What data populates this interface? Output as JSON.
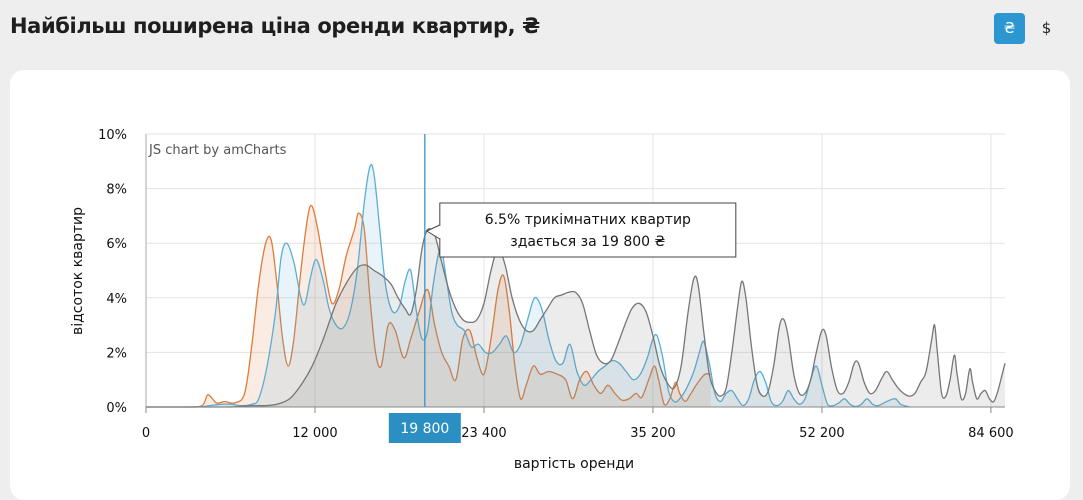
{
  "page": {
    "title": "Найбільш поширена ціна оренди квартир, ₴",
    "currency_uah": "₴",
    "currency_usd": "$"
  },
  "chart_data": {
    "type": "area",
    "credit": "JS chart by amCharts",
    "xlabel": "вартість оренди",
    "ylabel": "відсоток квартир",
    "x_ticks": [
      "0",
      "12 000",
      "23 400",
      "35 200",
      "52 200",
      "84 600"
    ],
    "x_tick_positions": [
      0,
      12,
      24,
      36,
      48,
      60
    ],
    "y_ticks": [
      "0%",
      "2%",
      "4%",
      "6%",
      "8%",
      "10%"
    ],
    "ylim": [
      0,
      10
    ],
    "xlim": [
      0,
      61
    ],
    "cursor": {
      "x": 19.8,
      "label": "19 800"
    },
    "tooltip": {
      "line1": "6.5% трикімнатних квартир",
      "line2": "здається за 19 800 ₴"
    },
    "series": [
      {
        "color": "#e07b39",
        "points": [
          [
            0,
            0
          ],
          [
            3,
            0
          ],
          [
            4,
            0.05
          ],
          [
            4.4,
            0.45
          ],
          [
            5,
            0.15
          ],
          [
            5.6,
            0.2
          ],
          [
            6.3,
            0.15
          ],
          [
            7,
            0.5
          ],
          [
            7.5,
            2.2
          ],
          [
            8,
            4.5
          ],
          [
            8.5,
            6.0
          ],
          [
            8.9,
            6.1
          ],
          [
            9.3,
            4.5
          ],
          [
            9.7,
            2.5
          ],
          [
            10.1,
            1.5
          ],
          [
            10.5,
            2.5
          ],
          [
            11,
            5.0
          ],
          [
            11.5,
            7.0
          ],
          [
            11.8,
            7.35
          ],
          [
            12.2,
            6.5
          ],
          [
            12.7,
            5.0
          ],
          [
            13.2,
            3.8
          ],
          [
            13.7,
            4.3
          ],
          [
            14.2,
            5.5
          ],
          [
            14.8,
            6.5
          ],
          [
            15.1,
            7.1
          ],
          [
            15.5,
            6.5
          ],
          [
            15.9,
            4.0
          ],
          [
            16.3,
            2.0
          ],
          [
            16.7,
            1.5
          ],
          [
            17.2,
            3.0
          ],
          [
            17.7,
            2.8
          ],
          [
            18.3,
            1.8
          ],
          [
            18.8,
            2.5
          ],
          [
            19.4,
            3.5
          ],
          [
            20,
            4.3
          ],
          [
            20.5,
            3.0
          ],
          [
            21,
            2.0
          ],
          [
            21.5,
            1.5
          ],
          [
            22,
            1.0
          ],
          [
            22.5,
            2.5
          ],
          [
            23,
            2.8
          ],
          [
            23.5,
            1.8
          ],
          [
            24,
            1.2
          ],
          [
            24.5,
            2.5
          ],
          [
            25,
            4.3
          ],
          [
            25.4,
            4.8
          ],
          [
            25.8,
            3.5
          ],
          [
            26.2,
            1.5
          ],
          [
            26.6,
            0.3
          ],
          [
            27,
            0.8
          ],
          [
            27.5,
            1.5
          ],
          [
            28,
            1.2
          ],
          [
            28.6,
            1.3
          ],
          [
            29.2,
            1.2
          ],
          [
            29.8,
            1.0
          ],
          [
            30.3,
            0.3
          ],
          [
            30.8,
            1.0
          ],
          [
            31.3,
            1.3
          ],
          [
            31.8,
            0.8
          ],
          [
            32.3,
            0.5
          ],
          [
            32.8,
            0.8
          ],
          [
            33.3,
            0.5
          ],
          [
            33.8,
            0.25
          ],
          [
            34.3,
            0.3
          ],
          [
            34.8,
            0.5
          ],
          [
            35.2,
            0.35
          ],
          [
            35.7,
            1.0
          ],
          [
            36.1,
            1.5
          ],
          [
            36.4,
            1.0
          ],
          [
            36.8,
            0.1
          ],
          [
            37.2,
            0.3
          ],
          [
            37.6,
            0.9
          ],
          [
            37.9,
            0.5
          ],
          [
            38.3,
            0.2
          ],
          [
            38.7,
            0.5
          ],
          [
            39.2,
            0.9
          ],
          [
            39.7,
            1.2
          ],
          [
            40.1,
            1.2
          ]
        ]
      },
      {
        "color": "#5aaed4",
        "points": [
          [
            0,
            0
          ],
          [
            3.5,
            0
          ],
          [
            4.5,
            0.05
          ],
          [
            5.3,
            0.1
          ],
          [
            6.1,
            0.1
          ],
          [
            6.8,
            0.05
          ],
          [
            7.5,
            0.1
          ],
          [
            8,
            0.3
          ],
          [
            8.6,
            1.5
          ],
          [
            9.2,
            3.5
          ],
          [
            9.6,
            5.5
          ],
          [
            10,
            6.0
          ],
          [
            10.5,
            5.3
          ],
          [
            11,
            4.0
          ],
          [
            11.3,
            3.8
          ],
          [
            11.7,
            4.8
          ],
          [
            12.1,
            5.4
          ],
          [
            12.6,
            4.6
          ],
          [
            13,
            3.6
          ],
          [
            13.5,
            3.0
          ],
          [
            14,
            2.9
          ],
          [
            14.5,
            3.5
          ],
          [
            15,
            5.0
          ],
          [
            15.5,
            7.5
          ],
          [
            15.9,
            8.8
          ],
          [
            16.2,
            8.5
          ],
          [
            16.6,
            6.5
          ],
          [
            17,
            4.5
          ],
          [
            17.5,
            3.5
          ],
          [
            18,
            3.7
          ],
          [
            18.4,
            4.6
          ],
          [
            18.8,
            5.0
          ],
          [
            19.2,
            3.5
          ],
          [
            19.6,
            2.5
          ],
          [
            20,
            2.8
          ],
          [
            20.4,
            4.5
          ],
          [
            20.9,
            5.8
          ],
          [
            21.3,
            4.8
          ],
          [
            21.7,
            3.5
          ],
          [
            22.1,
            3.0
          ],
          [
            22.6,
            2.8
          ],
          [
            23.1,
            2.2
          ],
          [
            23.6,
            2.3
          ],
          [
            24.1,
            2.0
          ],
          [
            24.6,
            2.0
          ],
          [
            25.1,
            2.3
          ],
          [
            25.6,
            2.6
          ],
          [
            26.1,
            2.0
          ],
          [
            26.6,
            2.3
          ],
          [
            27.1,
            3.2
          ],
          [
            27.6,
            4.0
          ],
          [
            28.1,
            3.6
          ],
          [
            28.6,
            2.5
          ],
          [
            29.1,
            1.7
          ],
          [
            29.6,
            1.6
          ],
          [
            30.1,
            2.3
          ],
          [
            30.6,
            1.3
          ],
          [
            31.1,
            0.8
          ],
          [
            31.6,
            1.0
          ],
          [
            32.1,
            1.3
          ],
          [
            32.6,
            1.5
          ],
          [
            33.1,
            1.7
          ],
          [
            33.6,
            1.6
          ],
          [
            34.1,
            1.3
          ],
          [
            34.6,
            1.0
          ],
          [
            35.1,
            1.2
          ],
          [
            35.6,
            1.8
          ],
          [
            36,
            2.5
          ],
          [
            36.3,
            2.6
          ],
          [
            36.7,
            1.8
          ],
          [
            37.1,
            0.6
          ],
          [
            37.5,
            0.2
          ],
          [
            37.9,
            0.3
          ],
          [
            38.4,
            0.7
          ],
          [
            38.9,
            1.3
          ],
          [
            39.3,
            2.0
          ],
          [
            39.6,
            2.4
          ],
          [
            40,
            1.6
          ],
          [
            40.4,
            0.5
          ],
          [
            40.8,
            0.2
          ],
          [
            41.2,
            0.5
          ],
          [
            41.6,
            0.6
          ],
          [
            42,
            0.3
          ],
          [
            42.4,
            0.05
          ],
          [
            42.8,
            0.3
          ],
          [
            43.2,
            1.0
          ],
          [
            43.6,
            1.3
          ],
          [
            44,
            0.9
          ],
          [
            44.4,
            0.2
          ],
          [
            44.8,
            0.05
          ],
          [
            45.2,
            0.2
          ],
          [
            45.6,
            0.6
          ],
          [
            46,
            0.3
          ],
          [
            46.4,
            0.1
          ],
          [
            46.8,
            0.3
          ],
          [
            47.2,
            1.0
          ],
          [
            47.6,
            1.5
          ],
          [
            48,
            0.8
          ],
          [
            48.4,
            0.1
          ],
          [
            48.8,
            0.05
          ],
          [
            49.2,
            0.15
          ],
          [
            49.6,
            0.3
          ],
          [
            50,
            0.1
          ],
          [
            50.4,
            0.02
          ],
          [
            50.8,
            0.1
          ],
          [
            51.2,
            0.3
          ],
          [
            51.6,
            0.1
          ],
          [
            52,
            0.05
          ],
          [
            52.6,
            0.2
          ],
          [
            53.2,
            0.3
          ],
          [
            53.6,
            0.1
          ],
          [
            54.2,
            0
          ]
        ]
      },
      {
        "color": "#767676",
        "points": [
          [
            0,
            0
          ],
          [
            5.5,
            0
          ],
          [
            6.5,
            0.02
          ],
          [
            7.5,
            0.05
          ],
          [
            8.5,
            0.05
          ],
          [
            9.3,
            0.1
          ],
          [
            10.2,
            0.3
          ],
          [
            11,
            0.8
          ],
          [
            11.8,
            1.5
          ],
          [
            12.6,
            2.5
          ],
          [
            13.5,
            3.8
          ],
          [
            14.3,
            4.6
          ],
          [
            15,
            5.1
          ],
          [
            15.6,
            5.2
          ],
          [
            16.2,
            5.0
          ],
          [
            16.8,
            4.8
          ],
          [
            17.4,
            4.5
          ],
          [
            17.9,
            4.0
          ],
          [
            18.4,
            3.6
          ],
          [
            18.8,
            3.4
          ],
          [
            19.2,
            4.3
          ],
          [
            19.6,
            5.8
          ],
          [
            20,
            6.5
          ],
          [
            20.5,
            6.3
          ],
          [
            21,
            5.3
          ],
          [
            21.5,
            4.3
          ],
          [
            22,
            3.6
          ],
          [
            22.5,
            3.2
          ],
          [
            23,
            3.1
          ],
          [
            23.5,
            3.2
          ],
          [
            24,
            3.8
          ],
          [
            24.5,
            5.0
          ],
          [
            25,
            5.8
          ],
          [
            25.5,
            5.2
          ],
          [
            26,
            4.0
          ],
          [
            26.5,
            3.2
          ],
          [
            27,
            2.8
          ],
          [
            27.5,
            2.8
          ],
          [
            28,
            3.2
          ],
          [
            28.5,
            3.6
          ],
          [
            29,
            4.0
          ],
          [
            29.5,
            4.1
          ],
          [
            30,
            4.2
          ],
          [
            30.5,
            4.2
          ],
          [
            31,
            3.8
          ],
          [
            31.5,
            2.8
          ],
          [
            32,
            1.9
          ],
          [
            32.5,
            1.6
          ],
          [
            33,
            1.7
          ],
          [
            33.5,
            2.3
          ],
          [
            34,
            3.0
          ],
          [
            34.5,
            3.6
          ],
          [
            35,
            3.8
          ],
          [
            35.5,
            3.5
          ],
          [
            36,
            2.6
          ],
          [
            36.5,
            1.5
          ],
          [
            37,
            0.9
          ],
          [
            37.5,
            0.7
          ],
          [
            38,
            1.5
          ],
          [
            38.5,
            3.5
          ],
          [
            38.9,
            4.7
          ],
          [
            39.2,
            4.5
          ],
          [
            39.6,
            2.8
          ],
          [
            40,
            1.2
          ],
          [
            40.4,
            0.6
          ],
          [
            40.8,
            0.4
          ],
          [
            41.2,
            0.7
          ],
          [
            41.6,
            2.0
          ],
          [
            42,
            3.6
          ],
          [
            42.3,
            4.6
          ],
          [
            42.6,
            4.0
          ],
          [
            43,
            2.2
          ],
          [
            43.4,
            0.8
          ],
          [
            43.8,
            0.4
          ],
          [
            44.2,
            0.6
          ],
          [
            44.6,
            1.6
          ],
          [
            45,
            3.0
          ],
          [
            45.3,
            3.2
          ],
          [
            45.6,
            2.6
          ],
          [
            46,
            1.2
          ],
          [
            46.4,
            0.5
          ],
          [
            46.8,
            0.5
          ],
          [
            47.2,
            1.0
          ],
          [
            47.6,
            2.0
          ],
          [
            48,
            2.8
          ],
          [
            48.3,
            2.6
          ],
          [
            48.7,
            1.4
          ],
          [
            49.1,
            0.6
          ],
          [
            49.5,
            0.5
          ],
          [
            49.9,
            0.9
          ],
          [
            50.3,
            1.6
          ],
          [
            50.6,
            1.6
          ],
          [
            51,
            0.9
          ],
          [
            51.4,
            0.5
          ],
          [
            51.8,
            0.6
          ],
          [
            52.2,
            1.0
          ],
          [
            52.6,
            1.3
          ],
          [
            53,
            1.0
          ],
          [
            53.4,
            0.7
          ],
          [
            53.8,
            0.5
          ],
          [
            54.2,
            0.4
          ],
          [
            54.6,
            0.5
          ],
          [
            55,
            0.9
          ],
          [
            55.4,
            1.3
          ],
          [
            55.8,
            2.5
          ],
          [
            56,
            3.0
          ],
          [
            56.2,
            2.0
          ],
          [
            56.5,
            0.5
          ],
          [
            56.8,
            0.4
          ],
          [
            57.1,
            1.0
          ],
          [
            57.4,
            1.9
          ],
          [
            57.6,
            1.2
          ],
          [
            57.9,
            0.3
          ],
          [
            58.2,
            0.5
          ],
          [
            58.5,
            1.4
          ],
          [
            58.7,
            0.9
          ],
          [
            59,
            0.3
          ],
          [
            59.3,
            0.5
          ],
          [
            59.6,
            0.6
          ],
          [
            59.9,
            0.3
          ],
          [
            60.2,
            0.2
          ],
          [
            60.5,
            0.6
          ],
          [
            60.8,
            1.2
          ],
          [
            61,
            1.6
          ]
        ]
      }
    ]
  }
}
